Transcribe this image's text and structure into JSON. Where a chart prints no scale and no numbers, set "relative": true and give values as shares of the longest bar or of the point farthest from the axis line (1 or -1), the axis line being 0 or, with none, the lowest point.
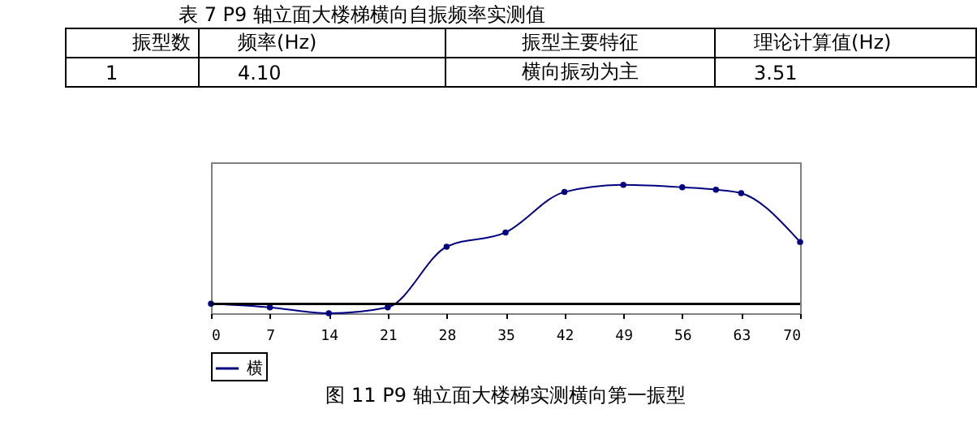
{
  "chart_data": {
    "type": "line",
    "title": "图 11  P9 轴立面大楼梯实测横向第一振型",
    "annotations": [
      "表 7  P9 轴立面大楼梯横向自振频率实测值",
      "振型数",
      "频率(Hz)",
      "振型主要特征",
      "理论计算值(Hz)",
      "1",
      "4.10",
      "横向振动为主",
      "3.51"
    ],
    "x": [
      0,
      7,
      14,
      21,
      28,
      35,
      42,
      49,
      56,
      60,
      63,
      70
    ],
    "xlim": [
      0,
      70
    ],
    "xticks": [
      0,
      7,
      14,
      21,
      28,
      35,
      42,
      49,
      56,
      63,
      70
    ],
    "relative": true,
    "series": [
      {
        "name": "横",
        "color": "#000080",
        "values": [
          0,
          -0.03,
          -0.08,
          -0.03,
          0.48,
          0.6,
          0.94,
          1,
          0.98,
          0.96,
          0.93,
          0.52
        ]
      }
    ],
    "marker": "circle",
    "legend": "bottom",
    "grid": false
  }
}
